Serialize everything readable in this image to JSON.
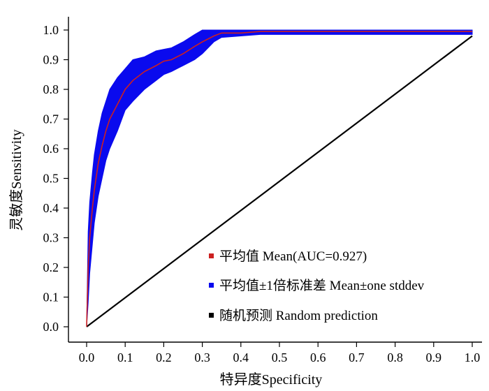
{
  "chart_data": {
    "type": "line",
    "xlabel": "特异度Specificity",
    "ylabel": "灵敏度Sensitivity",
    "xlim": [
      0,
      1
    ],
    "ylim": [
      0,
      1
    ],
    "x_ticks": [
      "0.0",
      "0.1",
      "0.2",
      "0.3",
      "0.4",
      "0.5",
      "0.6",
      "0.7",
      "0.8",
      "0.9",
      "1.0"
    ],
    "y_ticks": [
      "0.0",
      "0.1",
      "0.2",
      "0.3",
      "0.4",
      "0.5",
      "0.6",
      "0.7",
      "0.8",
      "0.9",
      "1.0"
    ],
    "grid": false,
    "legend_position": "bottom-right",
    "series": [
      {
        "name": "平均值 Mean(AUC=0.927)",
        "color": "#cc2020",
        "x": [
          0,
          0.004,
          0.008,
          0.015,
          0.02,
          0.03,
          0.04,
          0.05,
          0.06,
          0.08,
          0.1,
          0.12,
          0.15,
          0.18,
          0.2,
          0.22,
          0.25,
          0.28,
          0.3,
          0.33,
          0.35,
          0.4,
          0.45,
          0.5,
          0.6,
          0.7,
          0.8,
          0.9,
          1.0
        ],
        "y": [
          0,
          0.2,
          0.3,
          0.4,
          0.46,
          0.55,
          0.61,
          0.66,
          0.7,
          0.75,
          0.8,
          0.83,
          0.86,
          0.88,
          0.895,
          0.9,
          0.92,
          0.945,
          0.96,
          0.98,
          0.99,
          0.99,
          0.995,
          0.995,
          0.995,
          0.995,
          0.995,
          0.995,
          0.995
        ]
      },
      {
        "name": "平均值±1倍标准差 Mean±one stddev",
        "color": "#0a0aee",
        "type": "band",
        "x": [
          0,
          0.004,
          0.008,
          0.015,
          0.02,
          0.03,
          0.04,
          0.05,
          0.06,
          0.08,
          0.1,
          0.12,
          0.15,
          0.18,
          0.2,
          0.22,
          0.25,
          0.28,
          0.3,
          0.33,
          0.35,
          0.4,
          0.45,
          0.5,
          0.6,
          0.7,
          0.8,
          0.9,
          1.0
        ],
        "upper": [
          0,
          0.32,
          0.42,
          0.52,
          0.58,
          0.66,
          0.72,
          0.76,
          0.8,
          0.84,
          0.87,
          0.9,
          0.91,
          0.93,
          0.935,
          0.94,
          0.96,
          0.985,
          1.0,
          1.0,
          1.0,
          1.0,
          1.0,
          1.0,
          1.0,
          1.0,
          1.0,
          1.0,
          1.0
        ],
        "lower": [
          0,
          0.08,
          0.18,
          0.28,
          0.35,
          0.44,
          0.5,
          0.56,
          0.6,
          0.66,
          0.73,
          0.76,
          0.8,
          0.83,
          0.85,
          0.86,
          0.88,
          0.9,
          0.92,
          0.96,
          0.975,
          0.98,
          0.985,
          0.985,
          0.985,
          0.985,
          0.985,
          0.985,
          0.985
        ]
      },
      {
        "name": "随机预测  Random prediction",
        "color": "#000000",
        "x": [
          0,
          1
        ],
        "y": [
          0,
          0.98
        ]
      }
    ]
  }
}
